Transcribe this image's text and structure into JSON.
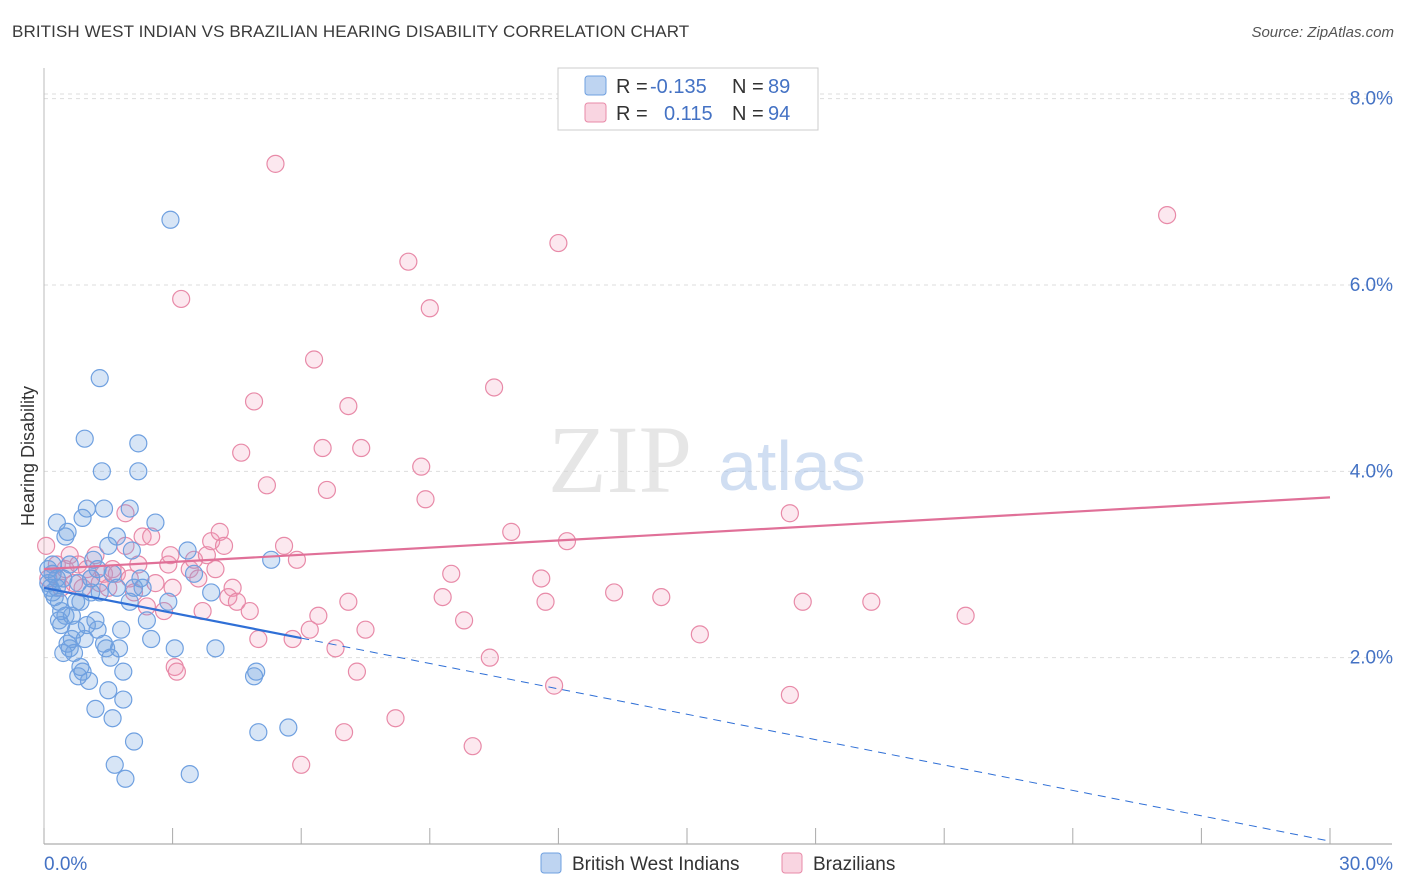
{
  "title": "BRITISH WEST INDIAN VS BRAZILIAN HEARING DISABILITY CORRELATION CHART",
  "source": "Source: ZipAtlas.com",
  "watermark": {
    "zip": "ZIP",
    "atlas": "atlas"
  },
  "legend": {
    "rows": [
      {
        "r_label": "R =",
        "r_value": "-0.135",
        "n_label": "N =",
        "n_value": "89"
      },
      {
        "r_label": "R =",
        "r_value": "0.115",
        "n_label": "N =",
        "n_value": "94"
      }
    ]
  },
  "bottom_legend": [
    "British West Indians",
    "Brazilians"
  ],
  "colors": {
    "blue": "#6fa0e0",
    "blue_fill": "rgba(111,160,224,0.28)",
    "blue_line": "#2f6fd6",
    "pink": "#e88aa8",
    "pink_fill": "rgba(240,150,180,0.22)",
    "pink_line": "#e07098",
    "tick_text": "#4472c4",
    "grid": "#dddddd"
  },
  "chart_data": {
    "type": "scatter",
    "title": "BRITISH WEST INDIAN VS BRAZILIAN HEARING DISABILITY CORRELATION CHART",
    "xlabel": "",
    "ylabel": "Hearing Disability",
    "xlim": [
      0,
      30
    ],
    "ylim": [
      0,
      8.2
    ],
    "x_tick_labels": [
      "0.0%",
      "30.0%"
    ],
    "y_ticks": [
      2,
      4,
      6,
      8
    ],
    "y_tick_labels": [
      "2.0%",
      "4.0%",
      "6.0%",
      "8.0%"
    ],
    "grid": true,
    "legend_position": "top-center",
    "series": [
      {
        "name": "British West Indians",
        "color": "#6fa0e0",
        "r": -0.135,
        "n": 89,
        "trend": {
          "x0": 0,
          "y0": 2.75,
          "x1": 6.0,
          "y1": 2.21,
          "dash_to_x": 30,
          "dash_to_y": 0.03
        },
        "points": [
          [
            0.1,
            2.95
          ],
          [
            0.1,
            2.8
          ],
          [
            0.15,
            2.75
          ],
          [
            0.2,
            2.7
          ],
          [
            0.2,
            2.9
          ],
          [
            0.25,
            2.65
          ],
          [
            0.3,
            2.85
          ],
          [
            0.3,
            3.45
          ],
          [
            0.35,
            2.4
          ],
          [
            0.4,
            2.5
          ],
          [
            0.4,
            2.35
          ],
          [
            0.45,
            2.05
          ],
          [
            0.5,
            2.45
          ],
          [
            0.5,
            3.3
          ],
          [
            0.55,
            2.15
          ],
          [
            0.6,
            2.1
          ],
          [
            0.6,
            3.0
          ],
          [
            0.65,
            2.2
          ],
          [
            0.7,
            2.05
          ],
          [
            0.75,
            2.3
          ],
          [
            0.75,
            2.6
          ],
          [
            0.8,
            1.8
          ],
          [
            0.8,
            2.8
          ],
          [
            0.85,
            1.9
          ],
          [
            0.9,
            1.85
          ],
          [
            0.9,
            3.5
          ],
          [
            0.95,
            4.35
          ],
          [
            1.0,
            3.6
          ],
          [
            1.0,
            2.35
          ],
          [
            1.05,
            1.75
          ],
          [
            1.1,
            2.85
          ],
          [
            1.1,
            2.7
          ],
          [
            1.2,
            1.45
          ],
          [
            1.2,
            2.4
          ],
          [
            1.25,
            2.3
          ],
          [
            1.3,
            2.7
          ],
          [
            1.3,
            5.0
          ],
          [
            1.35,
            4.0
          ],
          [
            1.4,
            3.6
          ],
          [
            1.45,
            2.1
          ],
          [
            1.5,
            3.2
          ],
          [
            1.5,
            1.65
          ],
          [
            1.55,
            2.0
          ],
          [
            1.6,
            2.9
          ],
          [
            1.6,
            1.35
          ],
          [
            1.65,
            0.85
          ],
          [
            1.7,
            2.75
          ],
          [
            1.75,
            2.1
          ],
          [
            1.8,
            2.3
          ],
          [
            1.85,
            1.85
          ],
          [
            1.85,
            1.55
          ],
          [
            1.9,
            0.7
          ],
          [
            2.0,
            3.6
          ],
          [
            2.05,
            3.15
          ],
          [
            2.1,
            1.1
          ],
          [
            2.1,
            2.75
          ],
          [
            2.2,
            4.3
          ],
          [
            2.2,
            4.0
          ],
          [
            2.25,
            2.85
          ],
          [
            2.3,
            2.75
          ],
          [
            2.4,
            2.4
          ],
          [
            2.5,
            2.2
          ],
          [
            2.6,
            3.45
          ],
          [
            2.9,
            2.6
          ],
          [
            2.95,
            6.7
          ],
          [
            3.05,
            2.1
          ],
          [
            3.35,
            3.15
          ],
          [
            3.4,
            0.75
          ],
          [
            3.5,
            2.9
          ],
          [
            3.9,
            2.7
          ],
          [
            4.0,
            2.1
          ],
          [
            4.9,
            1.8
          ],
          [
            4.95,
            1.85
          ],
          [
            5.0,
            1.2
          ],
          [
            5.3,
            3.05
          ],
          [
            5.7,
            1.25
          ],
          [
            1.15,
            3.05
          ],
          [
            0.2,
            3.0
          ],
          [
            0.65,
            2.45
          ],
          [
            0.95,
            2.2
          ],
          [
            1.4,
            2.15
          ],
          [
            0.35,
            2.6
          ],
          [
            0.55,
            3.35
          ],
          [
            0.45,
            2.85
          ],
          [
            0.85,
            2.6
          ],
          [
            1.7,
            3.3
          ],
          [
            2.0,
            2.6
          ],
          [
            1.25,
            2.95
          ],
          [
            0.3,
            2.75
          ]
        ]
      },
      {
        "name": "Brazilians",
        "color": "#e88aa8",
        "r": 0.115,
        "n": 94,
        "trend": {
          "x0": 0,
          "y0": 2.95,
          "x1": 30,
          "y1": 3.72
        },
        "points": [
          [
            0.05,
            3.2
          ],
          [
            0.1,
            2.85
          ],
          [
            0.2,
            2.9
          ],
          [
            0.3,
            3.0
          ],
          [
            0.4,
            2.75
          ],
          [
            0.5,
            2.95
          ],
          [
            0.6,
            3.1
          ],
          [
            0.7,
            2.8
          ],
          [
            0.8,
            3.0
          ],
          [
            0.9,
            2.75
          ],
          [
            1.0,
            2.95
          ],
          [
            1.1,
            2.85
          ],
          [
            1.2,
            3.1
          ],
          [
            1.3,
            2.8
          ],
          [
            1.4,
            2.9
          ],
          [
            1.5,
            2.75
          ],
          [
            1.6,
            2.95
          ],
          [
            1.7,
            2.9
          ],
          [
            1.9,
            3.2
          ],
          [
            1.9,
            3.55
          ],
          [
            2.0,
            2.85
          ],
          [
            2.1,
            2.7
          ],
          [
            2.2,
            3.0
          ],
          [
            2.3,
            3.3
          ],
          [
            2.4,
            2.55
          ],
          [
            2.5,
            3.3
          ],
          [
            2.6,
            2.8
          ],
          [
            2.8,
            2.5
          ],
          [
            2.9,
            3.0
          ],
          [
            2.95,
            3.1
          ],
          [
            3.0,
            2.75
          ],
          [
            3.05,
            1.9
          ],
          [
            3.1,
            1.85
          ],
          [
            3.2,
            5.85
          ],
          [
            3.4,
            2.95
          ],
          [
            3.5,
            3.05
          ],
          [
            3.6,
            2.85
          ],
          [
            3.7,
            2.5
          ],
          [
            3.8,
            3.1
          ],
          [
            3.9,
            3.25
          ],
          [
            4.0,
            2.95
          ],
          [
            4.1,
            3.35
          ],
          [
            4.2,
            3.2
          ],
          [
            4.3,
            2.65
          ],
          [
            4.4,
            2.75
          ],
          [
            4.5,
            2.6
          ],
          [
            4.6,
            4.2
          ],
          [
            4.8,
            2.5
          ],
          [
            4.9,
            4.75
          ],
          [
            5.0,
            2.2
          ],
          [
            5.2,
            3.85
          ],
          [
            5.4,
            7.3
          ],
          [
            5.6,
            3.2
          ],
          [
            5.8,
            2.2
          ],
          [
            5.9,
            3.05
          ],
          [
            6.0,
            0.85
          ],
          [
            6.2,
            2.3
          ],
          [
            6.3,
            5.2
          ],
          [
            6.4,
            2.45
          ],
          [
            6.5,
            4.25
          ],
          [
            6.6,
            3.8
          ],
          [
            6.8,
            2.1
          ],
          [
            7.0,
            1.2
          ],
          [
            7.1,
            2.6
          ],
          [
            7.1,
            4.7
          ],
          [
            7.3,
            1.85
          ],
          [
            7.4,
            4.25
          ],
          [
            7.5,
            2.3
          ],
          [
            8.2,
            1.35
          ],
          [
            8.5,
            6.25
          ],
          [
            8.8,
            4.05
          ],
          [
            8.9,
            3.7
          ],
          [
            9.0,
            5.75
          ],
          [
            9.3,
            2.65
          ],
          [
            9.8,
            2.4
          ],
          [
            10.0,
            1.05
          ],
          [
            10.4,
            2.0
          ],
          [
            10.5,
            4.9
          ],
          [
            10.9,
            3.35
          ],
          [
            11.6,
            2.85
          ],
          [
            11.7,
            2.6
          ],
          [
            11.9,
            1.7
          ],
          [
            12.0,
            6.45
          ],
          [
            12.2,
            3.25
          ],
          [
            13.3,
            2.7
          ],
          [
            14.4,
            2.65
          ],
          [
            15.3,
            2.25
          ],
          [
            17.4,
            3.55
          ],
          [
            17.4,
            1.6
          ],
          [
            17.7,
            2.6
          ],
          [
            19.3,
            2.6
          ],
          [
            21.5,
            2.45
          ],
          [
            26.2,
            6.75
          ],
          [
            9.5,
            2.9
          ]
        ]
      }
    ]
  }
}
